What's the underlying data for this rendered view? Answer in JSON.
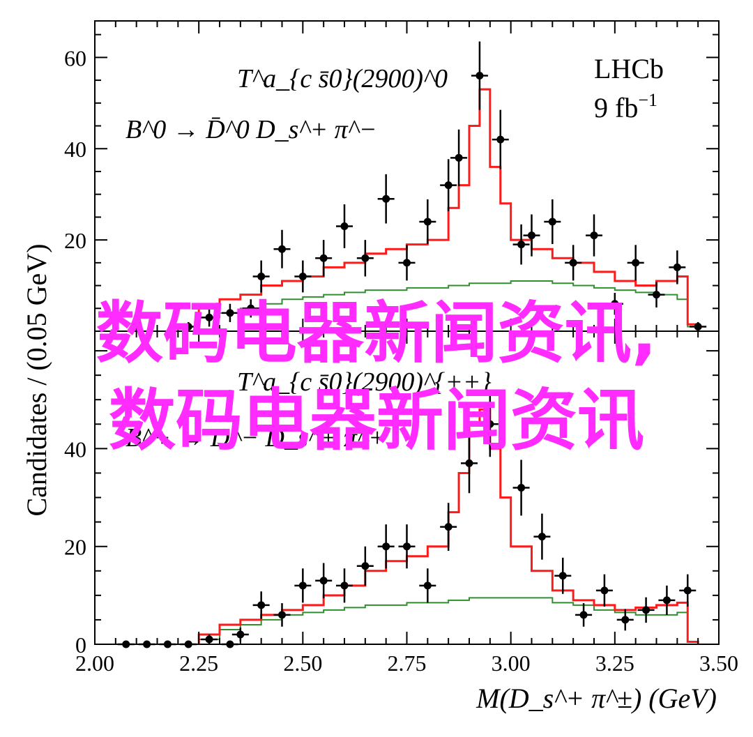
{
  "chart_data": [
    {
      "type": "line",
      "panel": "top",
      "title_line1": "T^a_{c s̄0}(2900)^0",
      "title_line2": "B^0 → D̄^0 D_s^+ π^−",
      "experiment": "LHCb",
      "luminosity": "9 fb",
      "luminosity_exp": "−1",
      "ylabel": "Candidates / (0.05 GeV)",
      "ylim": [
        0,
        68
      ],
      "yticks": [
        "20",
        "40",
        "60"
      ],
      "points": [
        {
          "x": 2.225,
          "y": 1,
          "e": 1
        },
        {
          "x": 2.275,
          "y": 3,
          "e": 2
        },
        {
          "x": 2.325,
          "y": 4,
          "e": 2
        },
        {
          "x": 2.375,
          "y": 5,
          "e": 2
        },
        {
          "x": 2.4,
          "y": 12,
          "e": 3.5
        },
        {
          "x": 2.45,
          "y": 18,
          "e": 4.2
        },
        {
          "x": 2.5,
          "y": 12,
          "e": 3.5
        },
        {
          "x": 2.55,
          "y": 16,
          "e": 4
        },
        {
          "x": 2.6,
          "y": 23,
          "e": 4.8
        },
        {
          "x": 2.65,
          "y": 16,
          "e": 4
        },
        {
          "x": 2.7,
          "y": 29,
          "e": 5.4
        },
        {
          "x": 2.75,
          "y": 15,
          "e": 3.9
        },
        {
          "x": 2.8,
          "y": 24,
          "e": 4.9
        },
        {
          "x": 2.85,
          "y": 32,
          "e": 5.7
        },
        {
          "x": 2.875,
          "y": 38,
          "e": 6.2
        },
        {
          "x": 2.925,
          "y": 56,
          "e": 7.5
        },
        {
          "x": 2.975,
          "y": 42,
          "e": 6.5
        },
        {
          "x": 3.025,
          "y": 19,
          "e": 4.4
        },
        {
          "x": 3.05,
          "y": 21,
          "e": 4.6
        },
        {
          "x": 3.1,
          "y": 24,
          "e": 4.9
        },
        {
          "x": 3.15,
          "y": 15,
          "e": 3.9
        },
        {
          "x": 3.2,
          "y": 21,
          "e": 4.6
        },
        {
          "x": 3.25,
          "y": 6,
          "e": 2.4
        },
        {
          "x": 3.3,
          "y": 15,
          "e": 3.9
        },
        {
          "x": 3.35,
          "y": 8,
          "e": 2.8
        },
        {
          "x": 3.4,
          "y": 14,
          "e": 3.7
        },
        {
          "x": 3.45,
          "y": 1,
          "e": 1
        }
      ],
      "total_fit": {
        "name": "total",
        "color": "#ff1a1a",
        "edges": [
          2.25,
          2.3,
          2.35,
          2.4,
          2.45,
          2.5,
          2.55,
          2.6,
          2.65,
          2.7,
          2.75,
          2.8,
          2.85,
          2.875,
          2.9,
          2.925,
          2.95,
          2.975,
          3.0,
          3.05,
          3.1,
          3.15,
          3.2,
          3.25,
          3.3,
          3.35,
          3.4,
          3.425,
          3.45
        ],
        "heights": [
          5,
          7,
          8,
          10,
          11,
          12,
          14,
          15,
          17,
          18,
          19,
          20,
          27,
          32,
          45,
          53,
          36,
          28,
          20,
          18,
          16,
          15,
          13,
          11,
          10,
          11,
          12,
          1.5
        ]
      },
      "component_fit": {
        "name": "component",
        "color": "#2f8f2f",
        "edges": [
          2.25,
          2.3,
          2.35,
          2.4,
          2.45,
          2.5,
          2.55,
          2.6,
          2.65,
          2.7,
          2.75,
          2.8,
          2.85,
          2.9,
          2.95,
          3.0,
          3.05,
          3.1,
          3.15,
          3.2,
          3.25,
          3.3,
          3.35,
          3.4,
          3.425,
          3.45
        ],
        "heights": [
          3,
          4,
          5,
          6,
          7,
          7.5,
          8,
          8.5,
          9,
          9,
          9.5,
          9.5,
          10,
          10.5,
          10.5,
          11,
          11,
          10.5,
          10,
          9.5,
          9,
          8.5,
          8,
          7,
          1
        ]
      }
    },
    {
      "type": "line",
      "panel": "bottom",
      "title_line1": "T^a_{c s̄0}(2900)^{++}",
      "title_line2": "B^+ → D^− D_s^+ π^+",
      "xlabel": "M(D_s^+ π^±) (GeV)",
      "xlim": [
        2.0,
        3.5
      ],
      "xticks": [
        "2.00",
        "2.25",
        "2.50",
        "2.75",
        "3.00",
        "3.25",
        "3.50"
      ],
      "ylim": [
        0,
        64
      ],
      "yticks": [
        "0",
        "20",
        "40"
      ],
      "points": [
        {
          "x": 2.075,
          "y": 0,
          "e": 0.4
        },
        {
          "x": 2.125,
          "y": 0,
          "e": 0.4
        },
        {
          "x": 2.175,
          "y": 0,
          "e": 0.4
        },
        {
          "x": 2.225,
          "y": 0,
          "e": 0.4
        },
        {
          "x": 2.275,
          "y": 1,
          "e": 1
        },
        {
          "x": 2.325,
          "y": 0,
          "e": 0.6
        },
        {
          "x": 2.35,
          "y": 2,
          "e": 1.4
        },
        {
          "x": 2.4,
          "y": 8,
          "e": 2.8
        },
        {
          "x": 2.45,
          "y": 6,
          "e": 2.4
        },
        {
          "x": 2.5,
          "y": 12,
          "e": 3.5
        },
        {
          "x": 2.55,
          "y": 13,
          "e": 3.6
        },
        {
          "x": 2.6,
          "y": 12,
          "e": 3.5
        },
        {
          "x": 2.65,
          "y": 16,
          "e": 4
        },
        {
          "x": 2.7,
          "y": 20,
          "e": 4.5
        },
        {
          "x": 2.75,
          "y": 20,
          "e": 4.5
        },
        {
          "x": 2.8,
          "y": 12,
          "e": 3.5
        },
        {
          "x": 2.85,
          "y": 24,
          "e": 4.9
        },
        {
          "x": 2.9,
          "y": 37,
          "e": 6.1
        },
        {
          "x": 2.95,
          "y": 45,
          "e": 6.7
        },
        {
          "x": 3.025,
          "y": 32,
          "e": 5.7
        },
        {
          "x": 3.075,
          "y": 22,
          "e": 4.7
        },
        {
          "x": 3.125,
          "y": 14,
          "e": 3.7
        },
        {
          "x": 3.175,
          "y": 6,
          "e": 2.4
        },
        {
          "x": 3.225,
          "y": 11,
          "e": 3.3
        },
        {
          "x": 3.275,
          "y": 5,
          "e": 2.2
        },
        {
          "x": 3.325,
          "y": 7,
          "e": 2.6
        },
        {
          "x": 3.375,
          "y": 9,
          "e": 3
        },
        {
          "x": 3.425,
          "y": 11,
          "e": 3.3
        }
      ],
      "total_fit": {
        "name": "total",
        "color": "#ff1a1a",
        "edges": [
          2.25,
          2.3,
          2.35,
          2.4,
          2.45,
          2.5,
          2.55,
          2.6,
          2.65,
          2.7,
          2.75,
          2.8,
          2.85,
          2.875,
          2.9,
          2.925,
          2.95,
          2.975,
          3.0,
          3.05,
          3.1,
          3.15,
          3.2,
          3.25,
          3.3,
          3.35,
          3.4,
          3.425,
          3.45
        ],
        "heights": [
          2,
          4,
          5,
          6,
          7,
          8,
          10,
          12,
          15,
          17,
          18,
          20,
          27,
          35,
          45,
          48,
          40,
          30,
          20,
          15,
          11,
          9,
          8,
          7,
          7.5,
          8,
          8.5,
          0.5
        ]
      },
      "component_fit": {
        "name": "component",
        "color": "#2f8f2f",
        "edges": [
          2.25,
          2.3,
          2.35,
          2.4,
          2.45,
          2.5,
          2.55,
          2.6,
          2.65,
          2.7,
          2.75,
          2.8,
          2.85,
          2.9,
          2.95,
          3.0,
          3.05,
          3.1,
          3.15,
          3.2,
          3.25,
          3.3,
          3.35,
          3.4,
          3.425,
          3.45
        ],
        "heights": [
          1,
          3,
          4,
          5,
          6,
          6.5,
          7,
          7.5,
          8,
          8,
          8.5,
          8.5,
          9,
          9.5,
          9.5,
          9.5,
          9.5,
          8.5,
          8,
          7,
          6.5,
          6,
          6,
          6.5,
          0.5
        ]
      }
    }
  ],
  "overlay": {
    "line1": "数码电器新闻资讯,",
    "line2": "数码电器新闻资讯"
  }
}
